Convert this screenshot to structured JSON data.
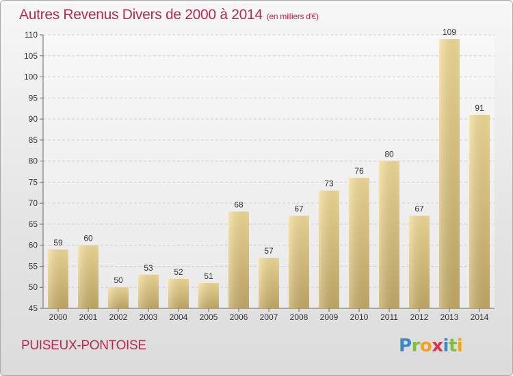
{
  "header": {
    "title": "Autres Revenus Divers de 2000 à 2014",
    "subtitle": "(en milliers d'€)"
  },
  "footer": {
    "city": "PUISEUX-PONTOISE",
    "logo_letters": [
      "P",
      "r",
      "o",
      "x",
      "i",
      "t",
      "i"
    ],
    "logo_colors": [
      "#3c87c9",
      "#7fbf3a",
      "#f2a31b",
      "#d8344f",
      "#3c87c9",
      "#7fbf3a",
      "#f2a31b"
    ]
  },
  "chart_data": {
    "type": "bar",
    "title": "Autres Revenus Divers de 2000 à 2014",
    "subtitle": "(en milliers d'€)",
    "categories": [
      "2000",
      "2001",
      "2002",
      "2003",
      "2004",
      "2005",
      "2006",
      "2007",
      "2008",
      "2009",
      "2010",
      "2011",
      "2012",
      "2013",
      "2014"
    ],
    "values": [
      59,
      60,
      50,
      53,
      52,
      51,
      68,
      57,
      67,
      73,
      76,
      80,
      67,
      109,
      91
    ],
    "data_labels": [
      "59",
      "60",
      "50",
      "53",
      "52",
      "51",
      "68",
      "57",
      "67",
      "73",
      "76",
      "80",
      "67",
      "109",
      "91"
    ],
    "ylim": [
      45,
      110
    ],
    "yticks": [
      45,
      50,
      55,
      60,
      65,
      70,
      75,
      80,
      85,
      90,
      95,
      100,
      105,
      110
    ],
    "grid": true,
    "bar_color": "#e8cf8a",
    "grid_color": "#cfcfcf"
  }
}
